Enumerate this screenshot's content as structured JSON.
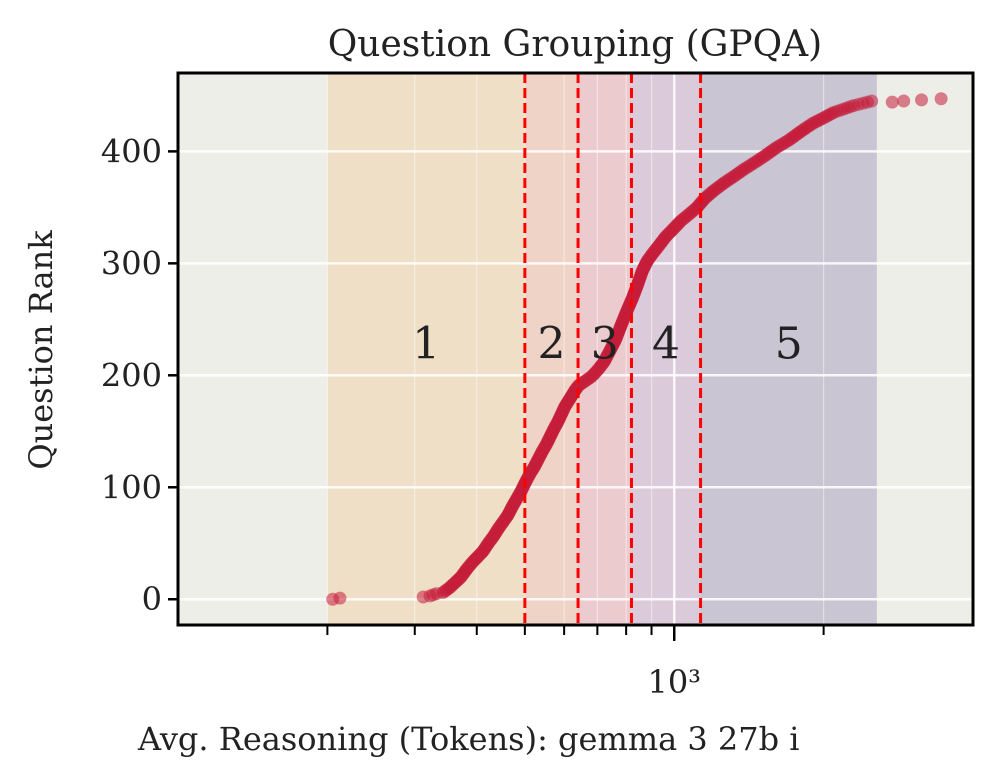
{
  "chart_data": {
    "type": "scatter",
    "title": "Question Grouping (GPQA)",
    "xlabel": "Avg. Reasoning (Tokens): gemma 3 27b i",
    "ylabel": "Question Rank",
    "x_scale": "log",
    "x_range": [
      100,
      4000
    ],
    "ylim": [
      -23,
      470
    ],
    "y_ticks": [
      0,
      100,
      200,
      300,
      400
    ],
    "y_tick_labels": [
      "0",
      "100",
      "200",
      "300",
      "400"
    ],
    "x_major_ticks": [
      1000
    ],
    "x_major_tick_labels": [
      "10³"
    ],
    "x_minor_ticks": [
      200,
      300,
      400,
      500,
      600,
      700,
      800,
      900,
      2000
    ],
    "grid": true,
    "groups": [
      {
        "label": "1",
        "x_from": 200,
        "x_to": 500,
        "color": "#f4c28a"
      },
      {
        "label": "2",
        "x_from": 500,
        "x_to": 640,
        "color": "#f2a088"
      },
      {
        "label": "3",
        "x_from": 640,
        "x_to": 820,
        "color": "#e88aa0"
      },
      {
        "label": "4",
        "x_from": 820,
        "x_to": 1130,
        "color": "#b888c0"
      },
      {
        "label": "5",
        "x_from": 1130,
        "x_to": 2560,
        "color": "#8878a8"
      }
    ],
    "boundaries": [
      500,
      640,
      820,
      1130
    ],
    "boundary_color": "#ff0000",
    "point_color": "#c41e3a",
    "curve_points": [
      [
        205,
        0
      ],
      [
        212,
        1
      ],
      [
        312,
        2
      ],
      [
        322,
        3
      ],
      [
        332,
        5
      ],
      [
        342,
        6
      ],
      [
        352,
        10
      ],
      [
        362,
        15
      ],
      [
        372,
        20
      ],
      [
        382,
        27
      ],
      [
        392,
        33
      ],
      [
        402,
        38
      ],
      [
        412,
        43
      ],
      [
        422,
        50
      ],
      [
        432,
        56
      ],
      [
        442,
        63
      ],
      [
        452,
        69
      ],
      [
        462,
        75
      ],
      [
        472,
        83
      ],
      [
        482,
        90
      ],
      [
        492,
        97
      ],
      [
        502,
        105
      ],
      [
        512,
        112
      ],
      [
        522,
        118
      ],
      [
        532,
        125
      ],
      [
        542,
        132
      ],
      [
        552,
        138
      ],
      [
        562,
        145
      ],
      [
        572,
        152
      ],
      [
        582,
        158
      ],
      [
        592,
        165
      ],
      [
        602,
        172
      ],
      [
        612,
        177
      ],
      [
        622,
        182
      ],
      [
        632,
        187
      ],
      [
        642,
        191
      ],
      [
        662,
        195
      ],
      [
        682,
        199
      ],
      [
        702,
        205
      ],
      [
        722,
        212
      ],
      [
        742,
        222
      ],
      [
        762,
        232
      ],
      [
        782,
        245
      ],
      [
        802,
        257
      ],
      [
        822,
        268
      ],
      [
        842,
        280
      ],
      [
        862,
        293
      ],
      [
        882,
        302
      ],
      [
        902,
        308
      ],
      [
        932,
        316
      ],
      [
        962,
        324
      ],
      [
        992,
        330
      ],
      [
        1032,
        338
      ],
      [
        1072,
        344
      ],
      [
        1112,
        350
      ],
      [
        1152,
        358
      ],
      [
        1202,
        365
      ],
      [
        1262,
        372
      ],
      [
        1322,
        378
      ],
      [
        1382,
        384
      ],
      [
        1452,
        390
      ],
      [
        1522,
        396
      ],
      [
        1602,
        403
      ],
      [
        1702,
        410
      ],
      [
        1802,
        418
      ],
      [
        1902,
        425
      ],
      [
        2002,
        430
      ],
      [
        2102,
        435
      ],
      [
        2202,
        438
      ],
      [
        2302,
        441
      ],
      [
        2402,
        443
      ],
      [
        2500,
        445
      ]
    ],
    "outliers": [
      [
        2750,
        444
      ],
      [
        2900,
        445
      ],
      [
        3150,
        446
      ],
      [
        3450,
        447
      ]
    ]
  }
}
